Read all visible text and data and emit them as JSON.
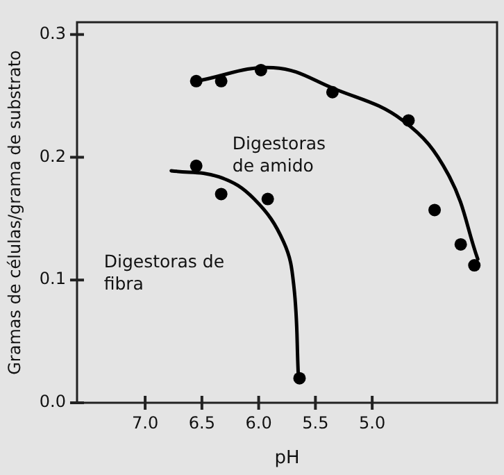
{
  "chart_data": {
    "type": "scatter",
    "xlabel": "pH",
    "ylabel": "Gramas de células/grama de substrato",
    "xlim": [
      7.6,
      3.9
    ],
    "xticks": [
      {
        "value": 7,
        "label": "7.0"
      },
      6.5,
      {
        "value": 6,
        "label": "6.0"
      },
      5.5,
      {
        "value": 5,
        "label": "5.0"
      }
    ],
    "ylim": [
      0,
      0.31
    ],
    "yticks": [
      {
        "value": 0,
        "label": "0.0"
      },
      0.1,
      0.2,
      0.3
    ],
    "grid": false,
    "legend": false,
    "marker": "circle",
    "series": [
      {
        "type": "scatter",
        "color": "#000000",
        "x": [
          6.55,
          6.33,
          5.98,
          5.35,
          4.68,
          4.45,
          4.22,
          4.1
        ],
        "values": [
          0.262,
          0.262,
          0.271,
          0.253,
          0.23,
          0.157,
          0.129,
          0.112
        ]
      },
      {
        "type": "scatter",
        "color": "#000000",
        "x": [
          6.55,
          6.33,
          5.92,
          5.64
        ],
        "values": [
          0.193,
          0.17,
          0.166,
          0.02
        ]
      },
      {
        "type": "line",
        "color": "#000000",
        "marker": "none",
        "line_style": "solid",
        "x": [
          6.55,
          5.87,
          5.34,
          4.73,
          4.33,
          4.07
        ],
        "values": [
          0.262,
          0.273,
          0.256,
          0.23,
          0.186,
          0.117
        ]
      },
      {
        "type": "line",
        "color": "#000000",
        "marker": "none",
        "line_style": "solid",
        "x": [
          6.77,
          6.35,
          6.04,
          5.78,
          5.69,
          5.65
        ],
        "values": [
          0.189,
          0.184,
          0.166,
          0.131,
          0.095,
          0.021
        ]
      }
    ],
    "annotations": [
      "Digestoras de amido",
      "Digestoras de fibra"
    ]
  }
}
